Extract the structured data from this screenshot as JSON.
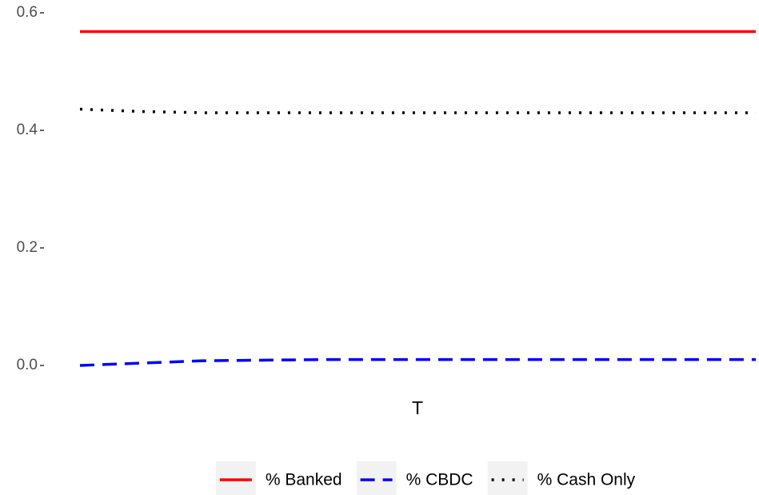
{
  "chart_data": {
    "type": "line",
    "xlabel": "T",
    "series": [
      {
        "name": "% Banked",
        "color": "#ff0000",
        "linetype": "solid",
        "values": [
          0.568,
          0.568,
          0.568,
          0.568,
          0.568,
          0.568,
          0.568,
          0.568,
          0.568,
          0.568,
          0.568,
          0.568
        ]
      },
      {
        "name": "% CBDC",
        "color": "#0000ff",
        "linetype": "dashed",
        "values": [
          0.0,
          0.004,
          0.008,
          0.009,
          0.01,
          0.01,
          0.01,
          0.01,
          0.01,
          0.01,
          0.01,
          0.01
        ]
      },
      {
        "name": "% Cash Only",
        "color": "#000000",
        "linetype": "dotted",
        "values": [
          0.436,
          0.432,
          0.43,
          0.43,
          0.43,
          0.43,
          0.43,
          0.43,
          0.43,
          0.43,
          0.43,
          0.43
        ]
      }
    ],
    "ylim": [
      0.0,
      0.6
    ],
    "yticks": [
      {
        "value": 0.0,
        "label": "0.0"
      },
      {
        "value": 0.2,
        "label": "0.2"
      },
      {
        "value": 0.4,
        "label": "0.4"
      },
      {
        "value": 0.6,
        "label": "0.6"
      }
    ],
    "legend": "bottom"
  }
}
